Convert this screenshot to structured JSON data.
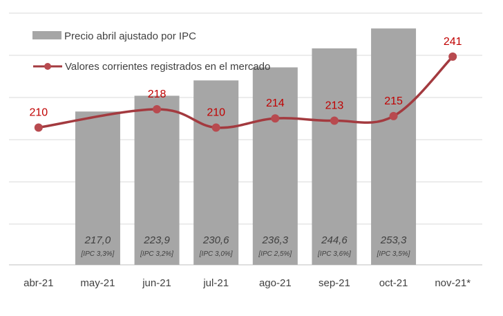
{
  "chart_data": {
    "type": "bar+line",
    "categories": [
      "abr-21",
      "may-21",
      "jun-21",
      "jul-21",
      "ago-21",
      "sep-21",
      "oct-21",
      "nov-21*"
    ],
    "series": [
      {
        "name": "Precio abril ajustado por IPC",
        "type": "bar",
        "values": [
          null,
          217.0,
          223.9,
          230.6,
          236.3,
          244.6,
          253.3,
          null
        ],
        "value_labels": [
          "",
          "217,0",
          "223,9",
          "230,6",
          "236,3",
          "244,6",
          "253,3",
          ""
        ],
        "notes": [
          "",
          "[IPC 3,3%]",
          "[IPC 3,2%]",
          "[IPC 3,0%]",
          "[IPC 2,5%]",
          "[IPC 3,6%]",
          "[IPC 3,5%]",
          ""
        ],
        "color": "#a6a6a6"
      },
      {
        "name": "Valores corrientes registrados en el mercado",
        "type": "line",
        "values": [
          210,
          null,
          218,
          210,
          214,
          213,
          215,
          241
        ],
        "labels": [
          "210",
          "",
          "218",
          "210",
          "214",
          "213",
          "215",
          "241"
        ],
        "color": "#a33a3f",
        "label_color": "#c00000"
      }
    ],
    "y_range": [
      150,
      260
    ],
    "grid": true,
    "legend_position": "top-left"
  }
}
